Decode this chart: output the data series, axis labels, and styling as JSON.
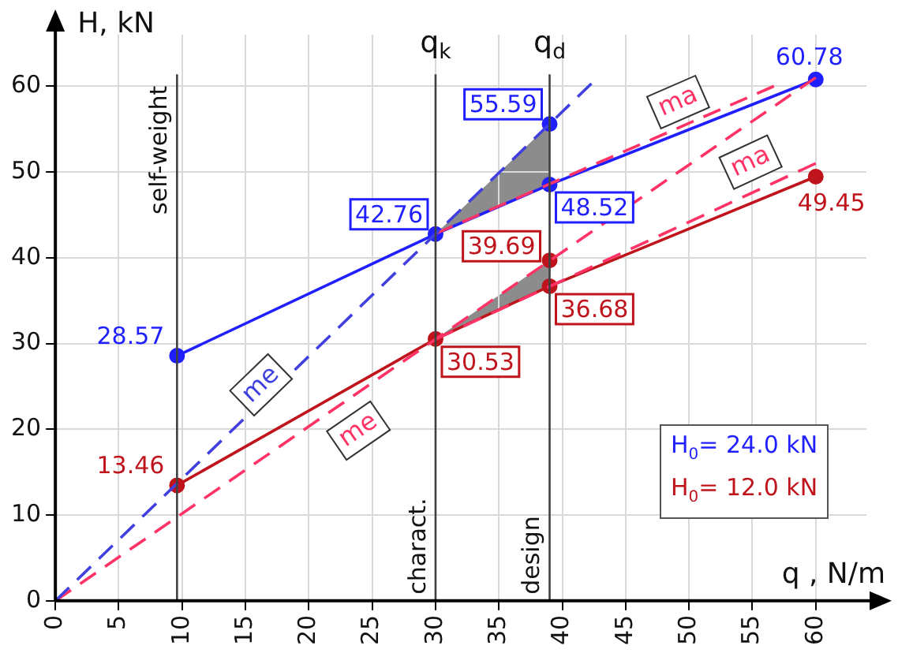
{
  "chart_data": {
    "type": "line",
    "xlabel": "q , N/m",
    "ylabel": "H, kN",
    "xlim": [
      0,
      64
    ],
    "ylim": [
      0,
      66
    ],
    "xticks": [
      0,
      5,
      10,
      15,
      20,
      25,
      30,
      35,
      40,
      45,
      50,
      55,
      60
    ],
    "yticks": [
      0,
      10,
      20,
      30,
      40,
      50,
      60
    ],
    "grid": true,
    "legend": "bottom right",
    "series": [
      {
        "name": "me",
        "line_style": "dashed",
        "color": "#4040e0",
        "x": [
          0,
          42.3
        ],
        "values": [
          0,
          60.3
        ]
      },
      {
        "name": "me",
        "line_style": "dashed",
        "color": "#ff3366",
        "x": [
          0,
          60
        ],
        "values": [
          0,
          61
        ]
      },
      {
        "name": "ma",
        "line_style": "dashed",
        "color": "#ff3366",
        "x": [
          30,
          56.7
        ],
        "values": [
          42.8,
          60
        ]
      },
      {
        "name": "ma",
        "line_style": "dashed",
        "color": "#ff3366",
        "x": [
          30,
          60
        ],
        "values": [
          30.5,
          51
        ]
      },
      {
        "name": "H$_{0}$= 24.0 kN",
        "color": "#1f1fff",
        "x": [
          9.6,
          30,
          39,
          60
        ],
        "values": [
          28.57,
          42.76,
          48.52,
          60.78
        ]
      },
      {
        "name": "H$_{0}$= 12.0 kN",
        "color": "#c0141c",
        "x": [
          9.6,
          30,
          39,
          60
        ],
        "values": [
          13.46,
          30.53,
          36.68,
          49.45
        ]
      },
      {
        "type": "scatter",
        "marker": "circle",
        "color": "#1f1fff",
        "x": [
          9.6,
          30,
          39,
          39,
          60
        ],
        "values": [
          28.57,
          42.76,
          55.59,
          48.52,
          60.78
        ],
        "value_labels": [
          "28.57",
          "42.76",
          "55.59",
          "48.52",
          "60.78"
        ]
      },
      {
        "type": "scatter",
        "marker": "circle",
        "color": "#c0141c",
        "x": [
          9.6,
          30,
          39,
          39,
          60
        ],
        "values": [
          13.46,
          30.53,
          39.69,
          36.68,
          49.45
        ],
        "value_labels": [
          "13.46",
          "30.53",
          "39.69",
          "36.68",
          "49.45"
        ]
      }
    ],
    "ref_lines": [
      {
        "axis": "x",
        "value": 9.6,
        "label": "self-weight",
        "color": "#404040"
      },
      {
        "axis": "x",
        "value": 30,
        "label": "charact.",
        "color": "#404040"
      },
      {
        "axis": "x",
        "value": 39,
        "label": "design",
        "color": "#404040"
      }
    ],
    "annotations": [
      "q$_{k}$",
      "q$_{d}$"
    ]
  }
}
